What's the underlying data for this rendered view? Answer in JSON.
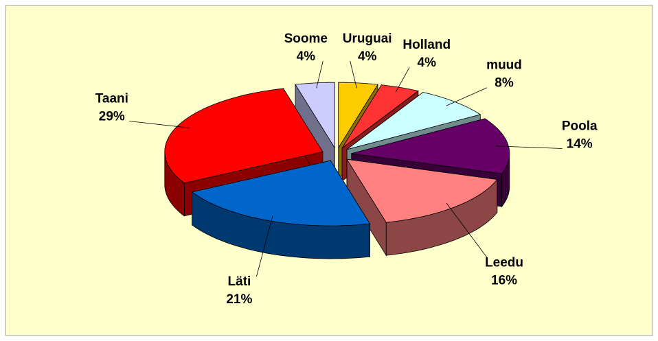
{
  "chart_data": {
    "type": "pie3d",
    "categories": [
      "Uruguai",
      "Holland",
      "muud",
      "Poola",
      "Leedu",
      "Läti",
      "Taani",
      "Soome"
    ],
    "values": [
      4,
      4,
      8,
      14,
      16,
      21,
      29,
      4
    ],
    "value_labels": [
      "4%",
      "4%",
      "8%",
      "14%",
      "16%",
      "21%",
      "29%",
      "4%"
    ],
    "colors": [
      "#FFCC00",
      "#FF3333",
      "#CCFFFF",
      "#660066",
      "#FF8080",
      "#0066CC",
      "#FF0000",
      "#CCCCFF"
    ]
  }
}
